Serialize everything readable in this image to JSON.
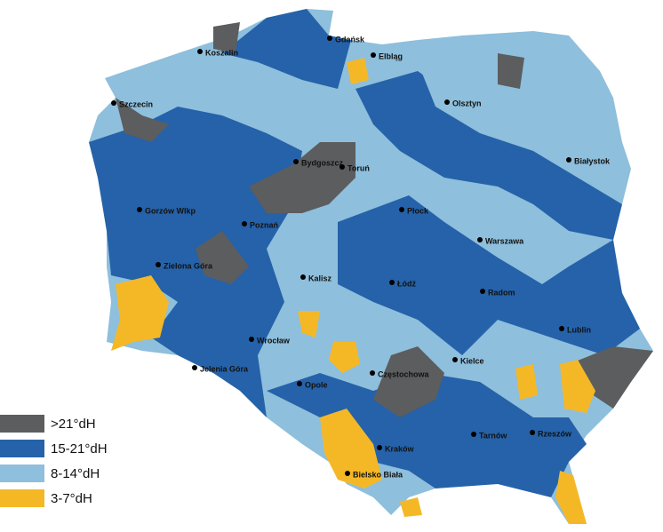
{
  "legend": [
    {
      "label": ">21°dH",
      "color": "#5c5d5f"
    },
    {
      "label": "15-21°dH",
      "color": "#2562a9"
    },
    {
      "label": "8-14°dH",
      "color": "#8ebfdc"
    },
    {
      "label": "3-7°dH",
      "color": "#f4b827"
    }
  ],
  "cities": [
    "Gdańsk",
    "Koszalin",
    "Elbląg",
    "Szczecin",
    "Olsztyn",
    "Bydgoszcz",
    "Toruń",
    "Białystok",
    "Gorzów Wlkp",
    "Poznań",
    "Płock",
    "Warszawa",
    "Zielona Góra",
    "Kalisz",
    "Łódź",
    "Radom",
    "Lublin",
    "Wrocław",
    "Kielce",
    "Jelenia Góra",
    "Opole",
    "Częstochowa",
    "Rzeszów",
    "Tarnów",
    "Kraków",
    "Bielsko Biała"
  ]
}
